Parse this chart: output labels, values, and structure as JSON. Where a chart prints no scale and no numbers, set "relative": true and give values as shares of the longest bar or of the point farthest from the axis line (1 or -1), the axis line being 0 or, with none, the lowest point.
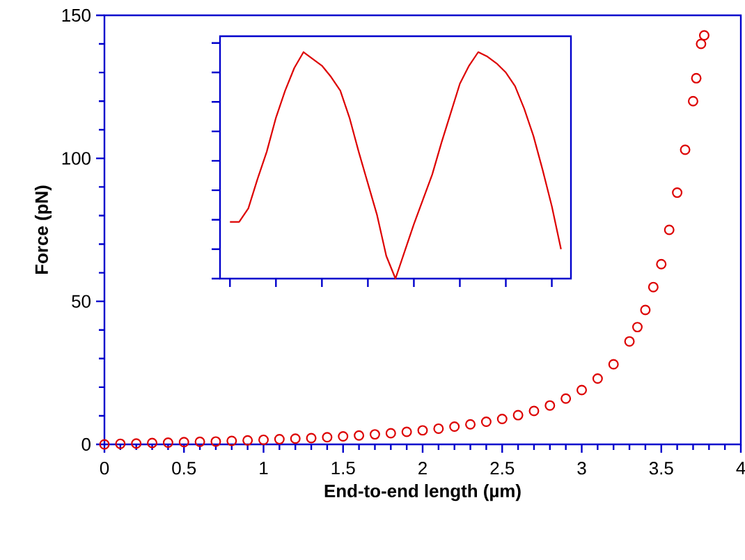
{
  "chart_data": [
    {
      "type": "scatter",
      "xlabel": "End-to-end length (µm)",
      "ylabel": "Force (pN)",
      "marker": "circle",
      "color": "#dd0000",
      "xlim": [
        0,
        4
      ],
      "xticks": [
        0,
        0.5,
        1,
        1.5,
        2,
        2.5,
        3,
        3.5,
        4
      ],
      "ylim": [
        0,
        150
      ],
      "yticks": [
        0,
        50,
        100,
        150
      ],
      "x": [
        0,
        0.1,
        0.2,
        0.3,
        0.4,
        0.5,
        0.6,
        0.7,
        0.8,
        0.9,
        1.0,
        1.1,
        1.2,
        1.3,
        1.4,
        1.5,
        1.6,
        1.7,
        1.8,
        1.9,
        2.0,
        2.1,
        2.2,
        2.3,
        2.4,
        2.5,
        2.6,
        2.7,
        2.8,
        2.9,
        3.0,
        3.1,
        3.2,
        3.3,
        3.35,
        3.4,
        3.45,
        3.5,
        3.55,
        3.6,
        3.65,
        3.7,
        3.72,
        3.75,
        3.77
      ],
      "values": [
        0,
        0.2,
        0.3,
        0.5,
        0.6,
        0.8,
        0.9,
        1.0,
        1.2,
        1.4,
        1.6,
        1.8,
        2.0,
        2.2,
        2.5,
        2.8,
        3.1,
        3.5,
        3.9,
        4.4,
        4.9,
        5.5,
        6.2,
        7.0,
        7.9,
        8.9,
        10.2,
        11.7,
        13.6,
        16,
        19,
        23,
        28,
        36,
        41,
        47,
        55,
        63,
        75,
        88,
        103,
        120,
        128,
        140,
        143
      ]
    },
    {
      "type": "line",
      "relative": true,
      "color": "#dd0000",
      "categories": [
        null,
        null,
        null,
        null,
        null,
        null,
        null,
        null,
        null,
        null,
        null,
        null,
        null,
        null,
        null,
        null,
        null,
        null,
        null,
        null,
        null,
        null,
        null,
        null,
        null,
        null,
        null,
        null,
        null,
        null,
        null,
        null,
        null,
        null,
        null,
        null,
        null
      ],
      "values": [
        0.25,
        0.25,
        0.31,
        0.44,
        0.56,
        0.71,
        0.83,
        0.93,
        1.0,
        0.97,
        0.94,
        0.89,
        0.83,
        0.71,
        0.56,
        0.42,
        0.28,
        0.1,
        0,
        0.12,
        0.24,
        0.35,
        0.46,
        0.6,
        0.73,
        0.86,
        0.94,
        1.0,
        0.98,
        0.95,
        0.91,
        0.85,
        0.75,
        0.63,
        0.48,
        0.32,
        0.13
      ]
    }
  ]
}
